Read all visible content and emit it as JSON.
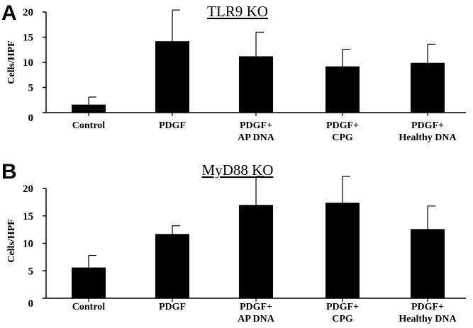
{
  "chart_data": [
    {
      "type": "bar",
      "panel": "A",
      "title": "TLR9 KO",
      "ylabel": "Cells/HPF",
      "xlabel": "",
      "ylim": [
        0,
        20
      ],
      "yticks": [
        0,
        5,
        10,
        15,
        20
      ],
      "categories": [
        [
          "Control"
        ],
        [
          "PDGF"
        ],
        [
          "PDGF+",
          "AP DNA"
        ],
        [
          "PDGF+",
          "CPG"
        ],
        [
          "PDGF+",
          "Healthy DNA"
        ]
      ],
      "values": [
        1.6,
        14.2,
        11.2,
        9.2,
        9.9
      ],
      "errors": [
        1.5,
        6.2,
        4.8,
        3.4,
        3.7
      ],
      "grid": false,
      "bar_color": "#000000"
    },
    {
      "type": "bar",
      "panel": "B",
      "title": "MyD88 KO",
      "ylabel": "Cells/HPF",
      "xlabel": "",
      "ylim": [
        0,
        20
      ],
      "yticks": [
        0,
        5,
        10,
        15,
        20
      ],
      "categories": [
        [
          "Control"
        ],
        [
          "PDGF"
        ],
        [
          "PDGF+",
          "AP DNA"
        ],
        [
          "PDGF+",
          "CPG"
        ],
        [
          "PDGF+",
          "Healthy DNA"
        ]
      ],
      "values": [
        5.6,
        11.7,
        17.0,
        17.4,
        12.6
      ],
      "errors": [
        2.2,
        1.5,
        5.2,
        4.8,
        4.2
      ],
      "grid": false,
      "bar_color": "#000000"
    }
  ]
}
